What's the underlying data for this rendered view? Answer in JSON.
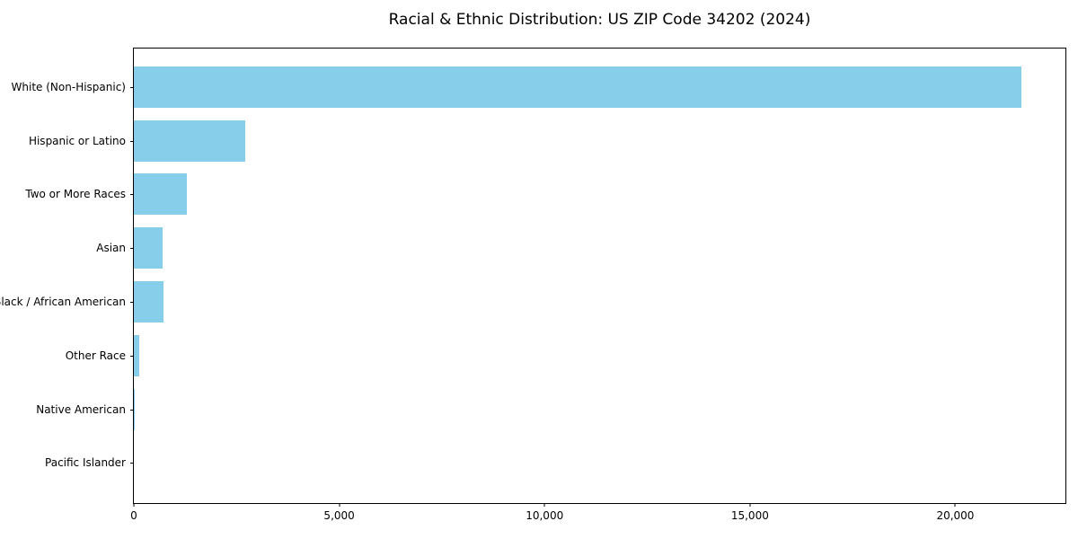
{
  "chart_data": {
    "type": "bar",
    "orientation": "horizontal",
    "title": "Racial & Ethnic Distribution: US ZIP Code 34202 (2024)",
    "categories": [
      "White (Non-Hispanic)",
      "Hispanic or Latino",
      "Two or More Races",
      "Asian",
      "Black / African American",
      "Other Race",
      "Native American",
      "Pacific Islander"
    ],
    "values": [
      21600,
      2720,
      1280,
      700,
      720,
      140,
      30,
      0
    ],
    "xlabel": "",
    "ylabel": "",
    "x_ticks": [
      0,
      5000,
      10000,
      15000,
      20000
    ],
    "x_tick_labels": [
      "0",
      "5,000",
      "10,000",
      "15,000",
      "20,000"
    ],
    "xlim": [
      0,
      22680
    ],
    "bar_color": "#87CEEB",
    "grid": false,
    "legend": null,
    "background_color": "#ffffff",
    "spine_color": "#000000"
  }
}
